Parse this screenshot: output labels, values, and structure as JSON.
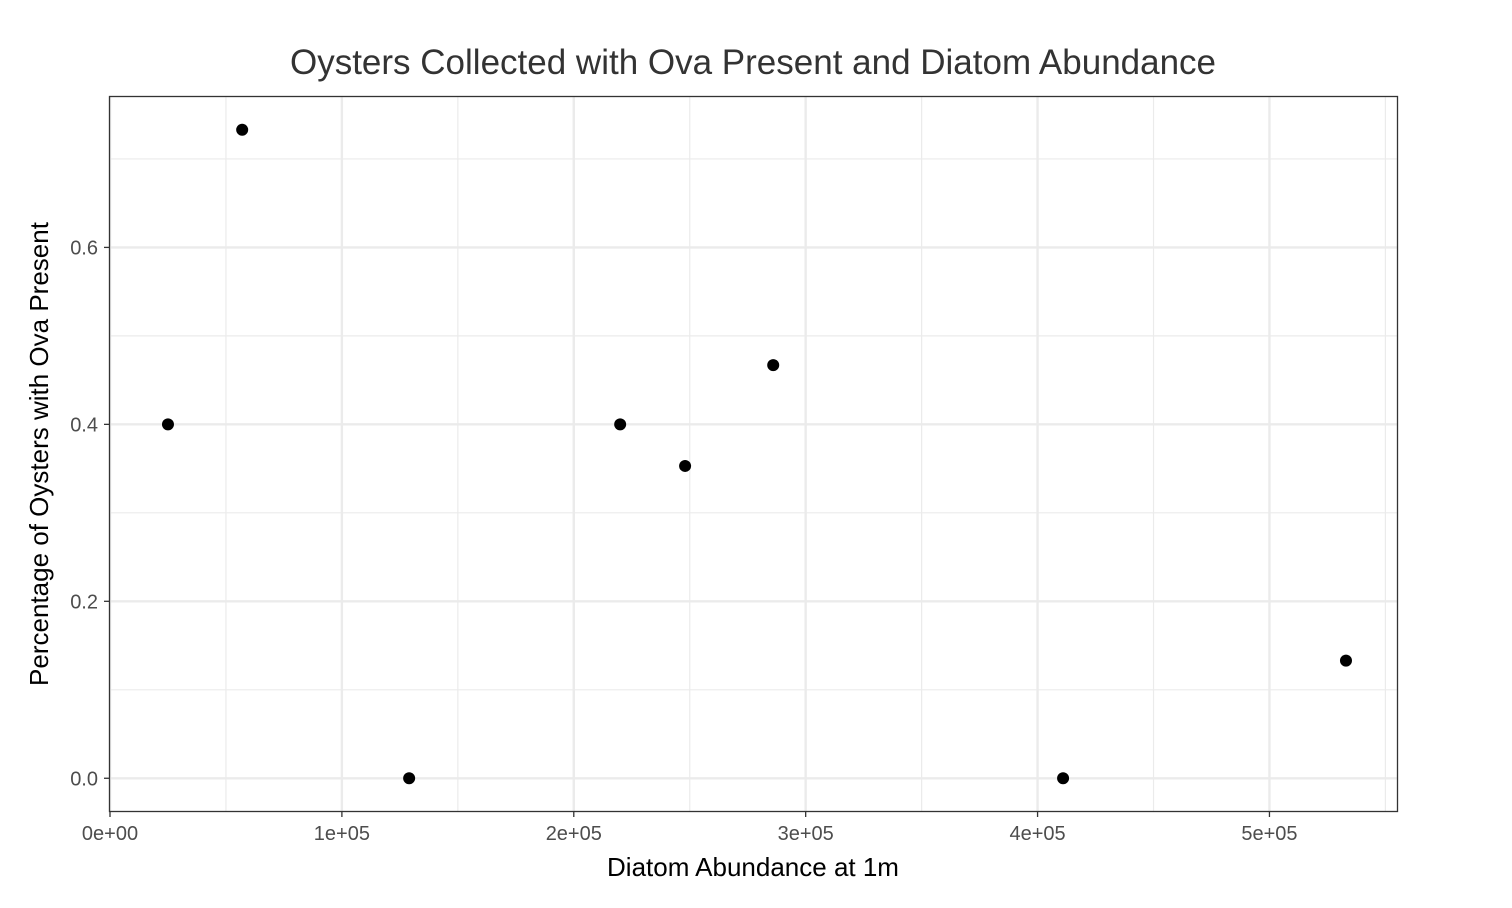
{
  "chart_data": {
    "type": "scatter",
    "title": "Oysters Collected with Ova Present and Diatom Abundance",
    "xlabel": "Diatom Abundance at 1m",
    "ylabel": "Percentage of Oysters with Ova Present",
    "xlim": [
      0,
      555000
    ],
    "ylim": [
      -0.037,
      0.77
    ],
    "x_ticks": [
      0,
      100000,
      200000,
      300000,
      400000,
      500000
    ],
    "x_tick_labels": [
      "0e+00",
      "1e+05",
      "2e+05",
      "3e+05",
      "4e+05",
      "5e+05"
    ],
    "x_minor_ticks": [
      50000,
      150000,
      250000,
      350000,
      450000,
      550000
    ],
    "y_ticks": [
      0.0,
      0.2,
      0.4,
      0.6
    ],
    "y_tick_labels": [
      "0.0",
      "0.2",
      "0.4",
      "0.6"
    ],
    "y_minor_ticks": [
      0.1,
      0.3,
      0.5,
      0.7
    ],
    "grid": true,
    "point_color": "#000000",
    "points": [
      {
        "x": 25000,
        "y": 0.4
      },
      {
        "x": 57000,
        "y": 0.733
      },
      {
        "x": 129000,
        "y": 0.0
      },
      {
        "x": 220000,
        "y": 0.4
      },
      {
        "x": 248000,
        "y": 0.353
      },
      {
        "x": 286000,
        "y": 0.467
      },
      {
        "x": 411000,
        "y": 0.0
      },
      {
        "x": 533000,
        "y": 0.133
      }
    ]
  }
}
